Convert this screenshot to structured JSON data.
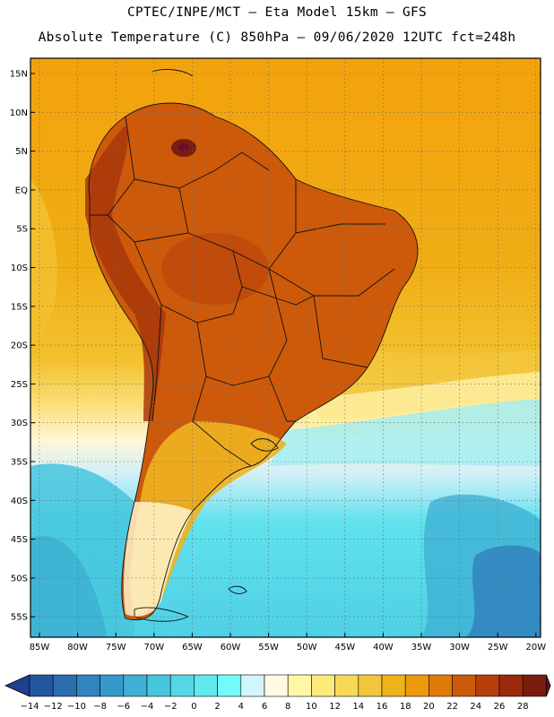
{
  "header": {
    "line1": "CPTEC/INPE/MCT –  Eta Model 15km – GFS",
    "line2": "Absolute Temperature (C) 850hPa – 09/06/2020 12UTC fct=248h"
  },
  "map": {
    "lat_labels": [
      "15N",
      "10N",
      "5N",
      "EQ",
      "5S",
      "10S",
      "15S",
      "20S",
      "25S",
      "30S",
      "35S",
      "40S",
      "45S",
      "50S",
      "55S"
    ],
    "lon_labels": [
      "85W",
      "80W",
      "75W",
      "70W",
      "65W",
      "60W",
      "55W",
      "50W",
      "45W",
      "40W",
      "35W",
      "30W",
      "25W",
      "20W"
    ],
    "colors": {
      "ocean_south": "#56d6e6",
      "ocean_deep": "#3aa8cf",
      "ocean_warm": "#f0b21a",
      "ocean_north": "#f5a50e",
      "land_hot": "#c8520b",
      "andes": "#a8370c",
      "border": "#111111"
    }
  },
  "colorbar": {
    "labels": [
      "-14",
      "-12",
      "-10",
      "-8",
      "-6",
      "-4",
      "-2",
      "0",
      "2",
      "4",
      "6",
      "8",
      "10",
      "12",
      "14",
      "16",
      "18",
      "20",
      "22",
      "24",
      "26",
      "28"
    ],
    "colors": [
      "#1f3f8f",
      "#24569f",
      "#2a6db0",
      "#3184bf",
      "#3799c9",
      "#3eb0d3",
      "#46c5dd",
      "#54d8e6",
      "#62e8ef",
      "#73fbfb",
      "#d2f5fb",
      "#fffae0",
      "#fff7a6",
      "#fcea7a",
      "#f7d857",
      "#f1c63a",
      "#eeb21a",
      "#ec9a0a",
      "#e07a07",
      "#cc5a0a",
      "#b63f0c",
      "#9b2a0d",
      "#7a1c0e",
      "#6a0f24"
    ],
    "units": "C"
  }
}
